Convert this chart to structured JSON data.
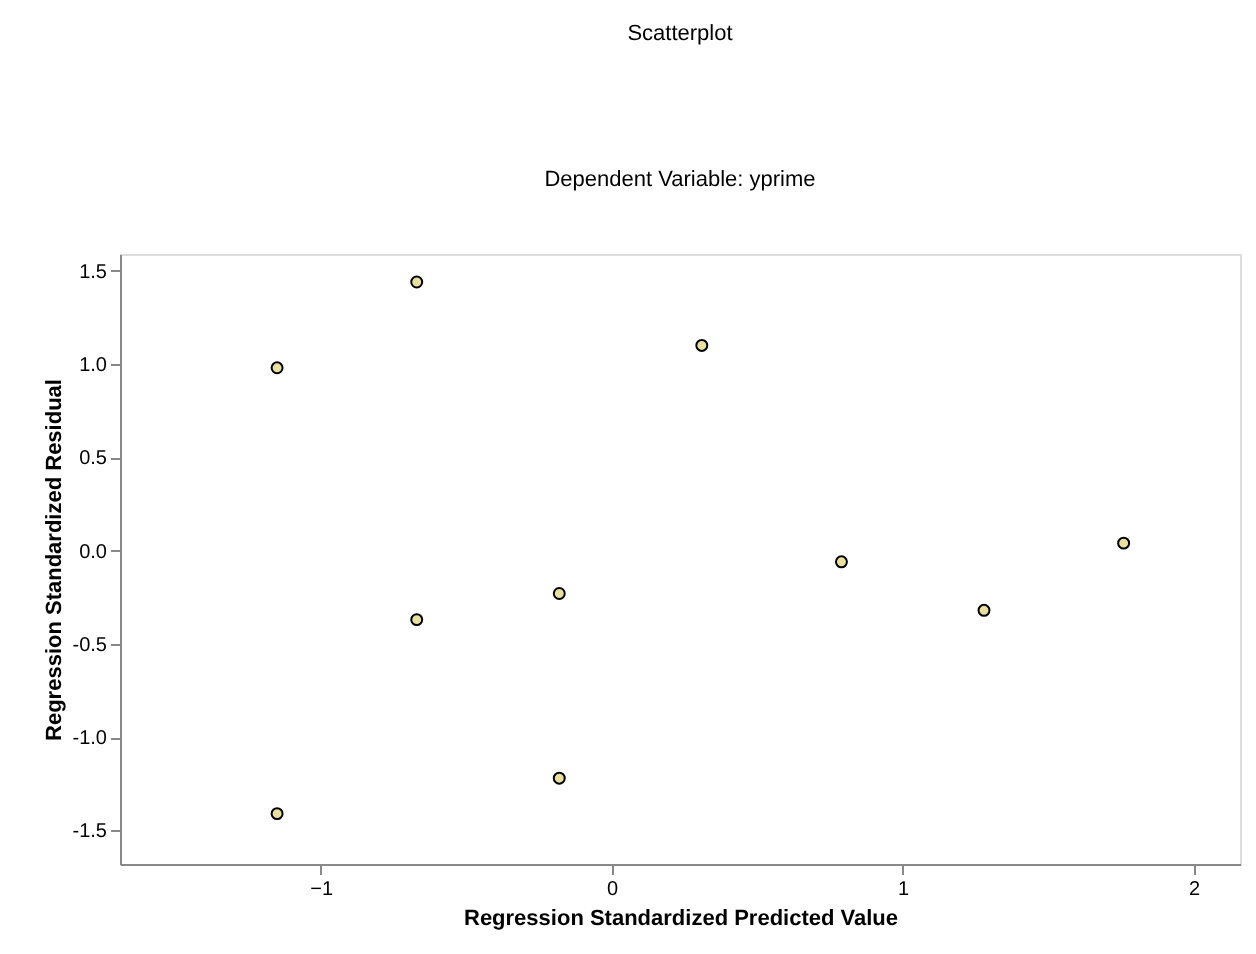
{
  "chart_data": {
    "type": "scatter",
    "title": "Scatterplot",
    "subtitle": "Dependent Variable: yprime",
    "xlabel": "Regression Standardized Predicted Value",
    "ylabel": "Regression Standardized Residual",
    "x": [
      -0.67,
      -1.15,
      0.31,
      -0.18,
      -0.67,
      0.79,
      1.28,
      1.76,
      -0.18,
      -1.15
    ],
    "series": [
      {
        "color": "#e8e0a0",
        "values": [
          1.44,
          0.98,
          1.1,
          -0.23,
          -0.37,
          -0.06,
          -0.32,
          0.04,
          -1.22,
          -1.41
        ]
      }
    ],
    "xlim": [
      -1.69,
      2.16
    ],
    "ylim": [
      -1.68,
      1.59
    ],
    "xticks": [
      -1,
      0,
      1,
      2
    ],
    "yticks": [
      {
        "value": -1.5,
        "label": "-1.5"
      },
      {
        "value": -1.0,
        "label": "-1.0"
      },
      {
        "value": -0.5,
        "label": "-0.5"
      },
      {
        "value": 0.0,
        "label": "0.0"
      },
      {
        "value": 0.5,
        "label": "0.5"
      },
      {
        "value": 1.0,
        "label": "1.0"
      },
      {
        "value": 1.5,
        "label": "1.5"
      }
    ],
    "grid": false,
    "marker": "circle"
  }
}
